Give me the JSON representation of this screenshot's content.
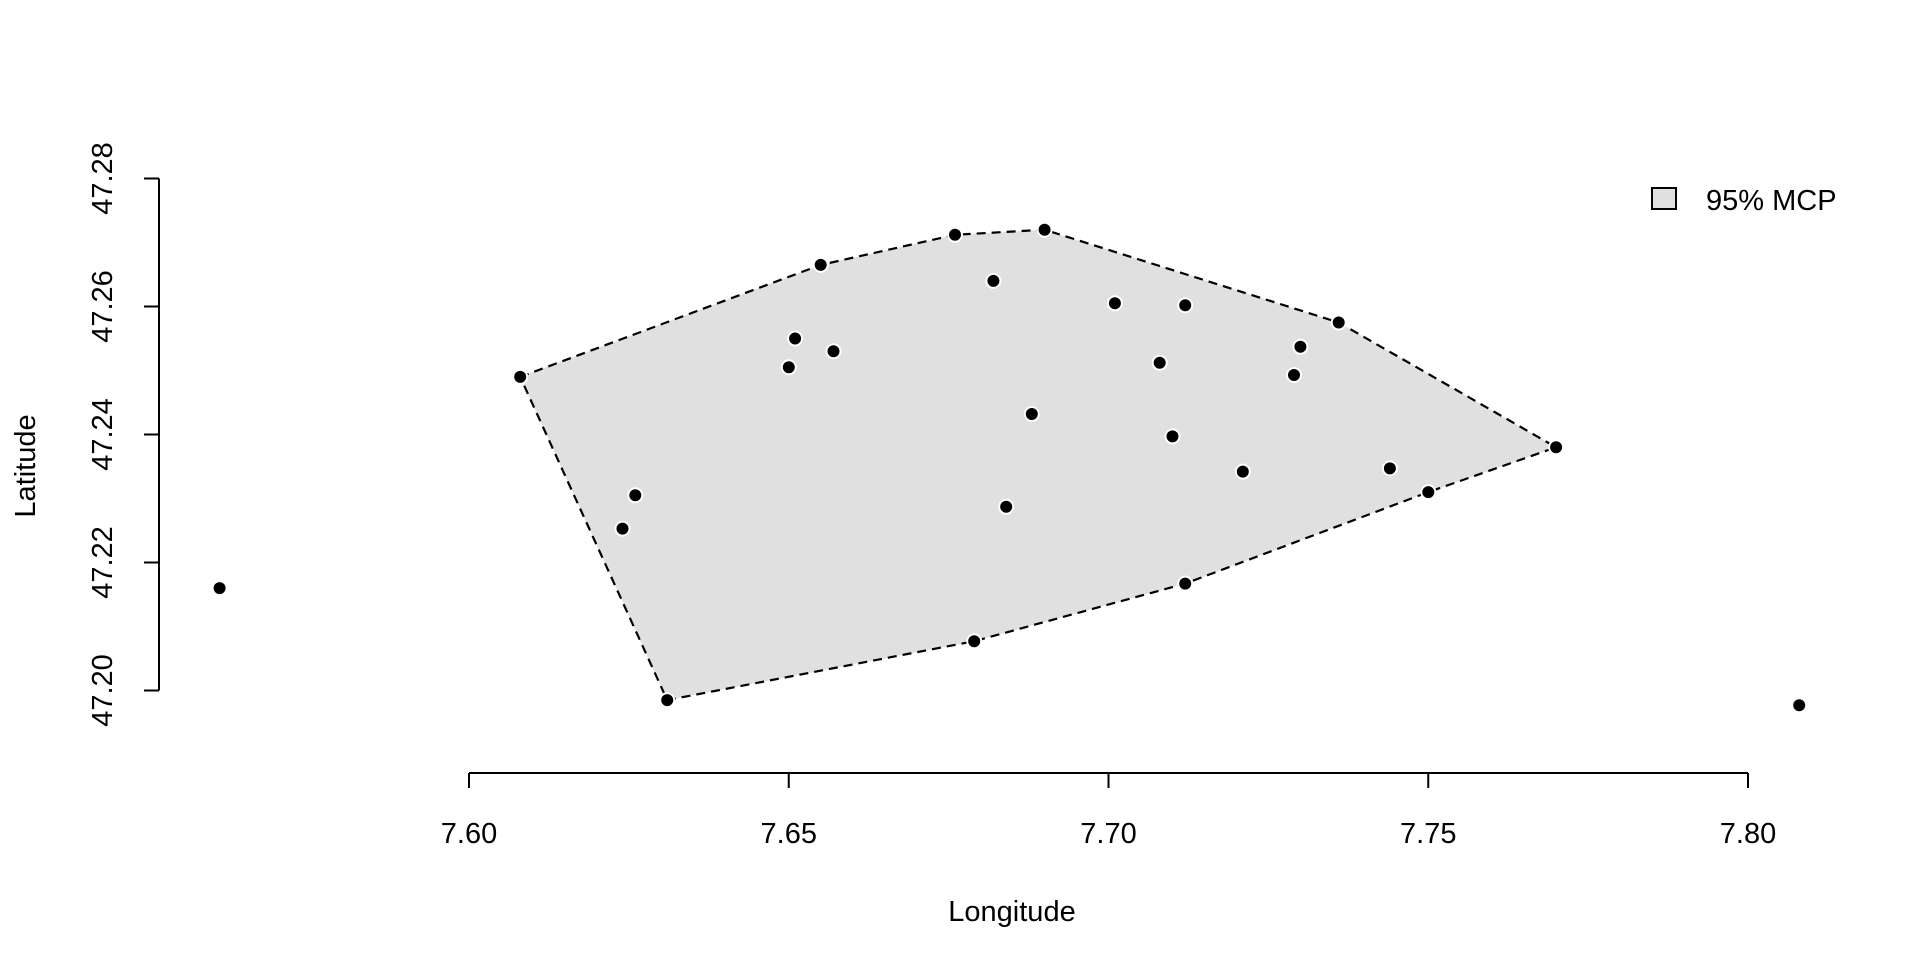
{
  "chart_data": {
    "type": "scatter",
    "title": "",
    "xlabel": "Longitude",
    "ylabel": "Latitude",
    "xlim": [
      7.56,
      7.81
    ],
    "ylim": [
      47.2,
      47.28
    ],
    "xticks": [
      "7.60",
      "7.65",
      "7.70",
      "7.75",
      "7.80"
    ],
    "yticks": [
      "47.20",
      "47.22",
      "47.24",
      "47.26",
      "47.28"
    ],
    "grid": false,
    "legend_position": "top-right",
    "legend": [
      {
        "label": "95% MCP",
        "swatch_color": "#e0e0e0"
      }
    ],
    "points": [
      {
        "x": 7.608,
        "y": 47.249
      },
      {
        "x": 7.631,
        "y": 47.1985
      },
      {
        "x": 7.655,
        "y": 47.2665
      },
      {
        "x": 7.676,
        "y": 47.2712
      },
      {
        "x": 7.69,
        "y": 47.272
      },
      {
        "x": 7.682,
        "y": 47.264
      },
      {
        "x": 7.651,
        "y": 47.255
      },
      {
        "x": 7.65,
        "y": 47.2505
      },
      {
        "x": 7.657,
        "y": 47.253
      },
      {
        "x": 7.701,
        "y": 47.2605
      },
      {
        "x": 7.712,
        "y": 47.2602
      },
      {
        "x": 7.708,
        "y": 47.2512
      },
      {
        "x": 7.688,
        "y": 47.2432
      },
      {
        "x": 7.71,
        "y": 47.2397
      },
      {
        "x": 7.73,
        "y": 47.2537
      },
      {
        "x": 7.729,
        "y": 47.2493
      },
      {
        "x": 7.736,
        "y": 47.2575
      },
      {
        "x": 7.77,
        "y": 47.238
      },
      {
        "x": 7.744,
        "y": 47.2347
      },
      {
        "x": 7.75,
        "y": 47.231
      },
      {
        "x": 7.721,
        "y": 47.2342
      },
      {
        "x": 7.684,
        "y": 47.2287
      },
      {
        "x": 7.626,
        "y": 47.2305
      },
      {
        "x": 7.624,
        "y": 47.2253
      },
      {
        "x": 7.712,
        "y": 47.2167
      },
      {
        "x": 7.679,
        "y": 47.2077
      },
      {
        "x": 7.561,
        "y": 47.216
      },
      {
        "x": 7.808,
        "y": 47.1977
      }
    ],
    "mcp_polygon": [
      {
        "x": 7.608,
        "y": 47.249
      },
      {
        "x": 7.655,
        "y": 47.2665
      },
      {
        "x": 7.676,
        "y": 47.2712
      },
      {
        "x": 7.69,
        "y": 47.272
      },
      {
        "x": 7.736,
        "y": 47.2575
      },
      {
        "x": 7.77,
        "y": 47.238
      },
      {
        "x": 7.75,
        "y": 47.231
      },
      {
        "x": 7.712,
        "y": 47.2167
      },
      {
        "x": 7.679,
        "y": 47.2077
      },
      {
        "x": 7.631,
        "y": 47.1985
      }
    ],
    "colors": {
      "polygon_fill": "#e0e0e0",
      "polygon_stroke": "#000000",
      "point_fill": "#000000",
      "point_stroke": "#ffffff",
      "axis": "#000000"
    }
  }
}
